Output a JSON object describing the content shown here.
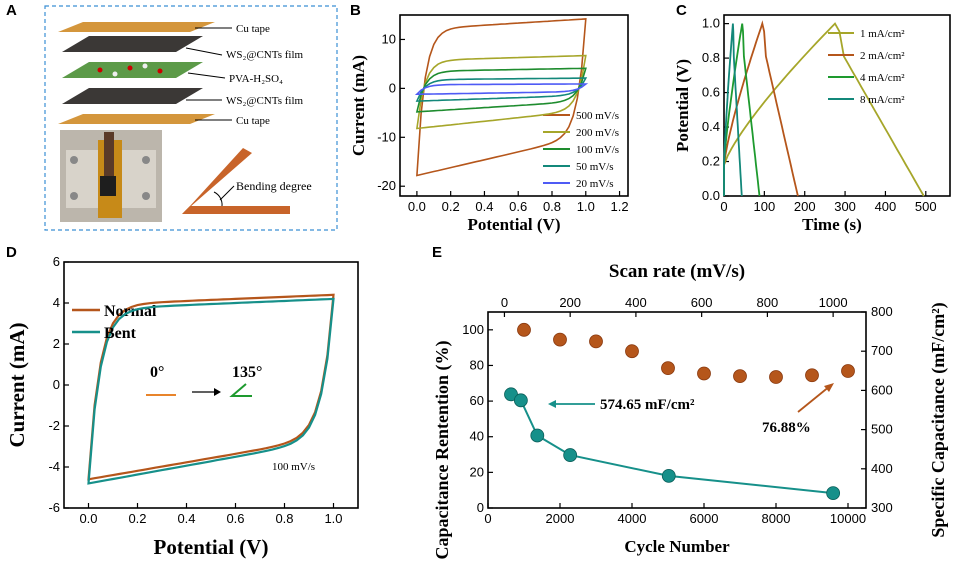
{
  "panel_letters": [
    "A",
    "B",
    "C",
    "D",
    "E"
  ],
  "schematic": {
    "labels": [
      "Cu tape",
      "WS₂@CNTs film",
      "PVA-H₂SO₄",
      "WS₂@CNTs film",
      "Cu tape"
    ],
    "bend_label": "Bending degree"
  },
  "chart_data": [
    {
      "id": "B",
      "type": "line",
      "xlabel": "Potential (V)",
      "ylabel": "Current (mA)",
      "xlim": [
        -0.1,
        1.25
      ],
      "ylim": [
        -22,
        15
      ],
      "xticks": [
        "0.0",
        "0.2",
        "0.4",
        "0.6",
        "0.8",
        "1.0",
        "1.2"
      ],
      "yticks": [
        "-20",
        "-10",
        "0",
        "10"
      ],
      "series": [
        {
          "name": "500 mV/s",
          "color": "#b5561b",
          "top": 14.2,
          "bottom": -17.8
        },
        {
          "name": "200 mV/s",
          "color": "#a6a62a",
          "top": 6.7,
          "bottom": -8.2
        },
        {
          "name": "100 mV/s",
          "color": "#1e8c2e",
          "top": 4.1,
          "bottom": -4.8
        },
        {
          "name": "50 mV/s",
          "color": "#13887a",
          "top": 2.1,
          "bottom": -2.6
        },
        {
          "name": "20 mV/s",
          "color": "#4f5bf5",
          "top": 0.9,
          "bottom": -1.2
        }
      ]
    },
    {
      "id": "C",
      "type": "line",
      "xlabel": "Time (s)",
      "ylabel": "Potential (V)",
      "xlim": [
        0,
        560
      ],
      "ylim": [
        0,
        1.05
      ],
      "xticks": [
        "0",
        "100",
        "200",
        "300",
        "400",
        "500"
      ],
      "yticks": [
        "0.0",
        "0.2",
        "0.4",
        "0.6",
        "0.8",
        "1.0"
      ],
      "series": [
        {
          "name": "1 mA/cm²",
          "color": "#a6a62a",
          "t_peak": 275,
          "t_end": 495
        },
        {
          "name": "2 mA/cm²",
          "color": "#b5561b",
          "t_peak": 95,
          "t_end": 183
        },
        {
          "name": "4 mA/cm²",
          "color": "#1e9a2e",
          "t_peak": 45,
          "t_end": 88
        },
        {
          "name": "8 mA/cm²",
          "color": "#13887a",
          "t_peak": 22,
          "t_end": 44
        }
      ]
    },
    {
      "id": "D",
      "type": "line",
      "xlabel": "Potential (V)",
      "ylabel": "Current (mA)",
      "xlim": [
        -0.1,
        1.1
      ],
      "ylim": [
        -6,
        6
      ],
      "xticks": [
        "0.0",
        "0.2",
        "0.4",
        "0.6",
        "0.8",
        "1.0"
      ],
      "yticks": [
        "-6",
        "-4",
        "-2",
        "0",
        "2",
        "4",
        "6"
      ],
      "annotation": "100 mV/s",
      "angle_from": "0°",
      "angle_to": "135°",
      "series": [
        {
          "name": "Normal",
          "color": "#b5561b",
          "top_start": 3.9,
          "top_end": 4.4,
          "bottom_start": -4.6
        },
        {
          "name": "Bent",
          "color": "#16908a",
          "top_start": 3.7,
          "top_end": 4.2,
          "bottom_start": -4.8
        }
      ]
    },
    {
      "id": "E",
      "type": "scatter",
      "xlabel": "Cycle Number",
      "ylabel": "Capacitance Rentention (%)",
      "x2label": "Scan rate (mV/s)",
      "y2label": "Specific Capacitance (mF/cm²)",
      "xlim": [
        0,
        10500
      ],
      "ylim": [
        0,
        110
      ],
      "x2lim": [
        -50,
        1100
      ],
      "y2lim": [
        300,
        800
      ],
      "xticks": [
        "0",
        "2000",
        "4000",
        "6000",
        "8000",
        "10000"
      ],
      "yticks": [
        "0",
        "20",
        "40",
        "60",
        "80",
        "100"
      ],
      "x2ticks": [
        "0",
        "200",
        "400",
        "600",
        "800",
        "1000"
      ],
      "y2ticks": [
        "300",
        "400",
        "500",
        "600",
        "700",
        "800"
      ],
      "series": [
        {
          "name": "Capacitance Retention",
          "color": "#b5561b",
          "axis": "primary",
          "x": [
            1000,
            2000,
            3000,
            4000,
            5000,
            6000,
            7000,
            8000,
            9000,
            10000
          ],
          "y": [
            100,
            94.5,
            93.5,
            88,
            78.5,
            75.5,
            74,
            73.5,
            74.5,
            76.88
          ]
        },
        {
          "name": "Specific Capacitance",
          "color": "#16908a",
          "axis": "secondary",
          "x": [
            20,
            50,
            100,
            200,
            500,
            1000
          ],
          "y": [
            590,
            574.65,
            485,
            435,
            382,
            338
          ]
        }
      ],
      "annotations": [
        "574.65 mF/cm²",
        "76.88%"
      ]
    }
  ]
}
